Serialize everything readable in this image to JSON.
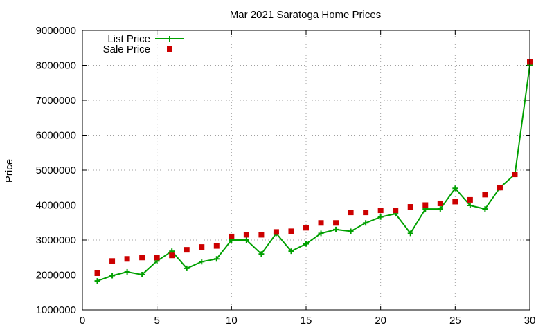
{
  "chart_data": {
    "type": "line",
    "title": "Mar 2021 Saratoga Home Prices",
    "xlabel": "",
    "ylabel": "Price",
    "xlim": [
      0,
      30
    ],
    "ylim": [
      1000000,
      9000000
    ],
    "xticks": [
      0,
      5,
      10,
      15,
      20,
      25,
      30
    ],
    "yticks": [
      1000000,
      2000000,
      3000000,
      4000000,
      5000000,
      6000000,
      7000000,
      8000000,
      9000000
    ],
    "grid": true,
    "legend_position": "top-left",
    "x": [
      1,
      2,
      3,
      4,
      5,
      6,
      7,
      8,
      9,
      10,
      11,
      12,
      13,
      14,
      15,
      16,
      17,
      18,
      19,
      20,
      21,
      22,
      23,
      24,
      25,
      26,
      27,
      28,
      29,
      30
    ],
    "series": [
      {
        "name": "List Price",
        "style": "line-with-plus-markers",
        "color": "#00a000",
        "values": [
          1830000,
          1980000,
          2090000,
          2010000,
          2400000,
          2680000,
          2190000,
          2380000,
          2460000,
          3000000,
          3000000,
          2600000,
          3190000,
          2680000,
          2890000,
          3190000,
          3300000,
          3250000,
          3490000,
          3660000,
          3750000,
          3190000,
          3890000,
          3890000,
          4480000,
          3990000,
          3890000,
          4500000,
          4880000,
          8000000
        ]
      },
      {
        "name": "Sale Price",
        "style": "square-markers",
        "color": "#cc0000",
        "values": [
          2050000,
          2400000,
          2460000,
          2500000,
          2500000,
          2560000,
          2720000,
          2800000,
          2830000,
          3100000,
          3150000,
          3150000,
          3230000,
          3250000,
          3350000,
          3490000,
          3490000,
          3790000,
          3790000,
          3850000,
          3850000,
          3950000,
          4000000,
          4050000,
          4100000,
          4150000,
          4300000,
          4500000,
          4880000,
          8100000
        ]
      }
    ]
  }
}
